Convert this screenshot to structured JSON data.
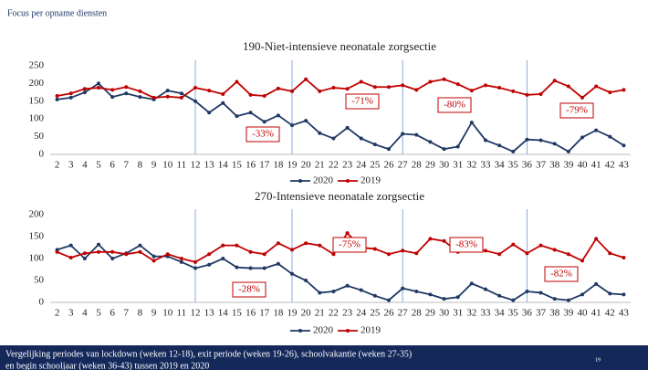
{
  "header": {
    "title": "Focus per opname diensten"
  },
  "chart_data": [
    {
      "type": "line",
      "title": "190-Niet-intensieve neonatale zorgsectie",
      "categories": [
        "2",
        "3",
        "4",
        "5",
        "6",
        "7",
        "8",
        "9",
        "10",
        "11",
        "12",
        "13",
        "14",
        "15",
        "16",
        "17",
        "18",
        "19",
        "20",
        "21",
        "22",
        "23",
        "24",
        "25",
        "26",
        "27",
        "28",
        "29",
        "30",
        "31",
        "32",
        "33",
        "34",
        "35",
        "36",
        "37",
        "38",
        "39",
        "40",
        "41",
        "42",
        "43"
      ],
      "series": [
        {
          "name": "2020",
          "color": "#1f3864",
          "values": [
            155,
            160,
            175,
            200,
            162,
            172,
            162,
            155,
            180,
            172,
            150,
            118,
            145,
            108,
            118,
            92,
            110,
            82,
            95,
            60,
            45,
            75,
            45,
            28,
            15,
            58,
            55,
            35,
            15,
            22,
            90,
            40,
            25,
            8,
            42,
            40,
            30,
            8,
            48,
            68,
            50,
            25
          ]
        },
        {
          "name": "2019",
          "color": "#c00000",
          "values": [
            165,
            172,
            185,
            188,
            182,
            190,
            178,
            160,
            163,
            160,
            188,
            180,
            170,
            205,
            168,
            165,
            186,
            178,
            212,
            178,
            188,
            185,
            205,
            190,
            190,
            195,
            182,
            205,
            212,
            198,
            180,
            195,
            188,
            178,
            168,
            170,
            208,
            192,
            160,
            192,
            175,
            182
          ]
        }
      ],
      "ylim": [
        0,
        250
      ],
      "yticks": [
        0,
        50,
        100,
        150,
        200,
        250
      ],
      "grid": false,
      "annotations": [
        "-33%",
        "-71%",
        "-80%",
        "-79%"
      ]
    },
    {
      "type": "line",
      "title": "270-Intensieve neonatale zorgsectie",
      "categories": [
        "2",
        "3",
        "4",
        "5",
        "6",
        "7",
        "8",
        "9",
        "10",
        "11",
        "12",
        "13",
        "14",
        "15",
        "16",
        "17",
        "18",
        "19",
        "20",
        "21",
        "22",
        "23",
        "24",
        "25",
        "26",
        "27",
        "28",
        "29",
        "30",
        "31",
        "32",
        "33",
        "34",
        "35",
        "36",
        "37",
        "38",
        "39",
        "40",
        "41",
        "42",
        "43"
      ],
      "series": [
        {
          "name": "2020",
          "color": "#1f3864",
          "values": [
            120,
            130,
            100,
            132,
            100,
            112,
            130,
            105,
            105,
            92,
            78,
            86,
            100,
            80,
            78,
            78,
            88,
            65,
            50,
            22,
            25,
            38,
            28,
            15,
            5,
            32,
            25,
            18,
            8,
            12,
            43,
            30,
            15,
            5,
            25,
            22,
            8,
            5,
            18,
            42,
            20,
            18
          ]
        },
        {
          "name": "2019",
          "color": "#c00000",
          "values": [
            115,
            102,
            112,
            115,
            115,
            110,
            115,
            95,
            110,
            100,
            92,
            110,
            130,
            130,
            115,
            110,
            135,
            120,
            135,
            130,
            110,
            158,
            125,
            122,
            110,
            118,
            112,
            145,
            140,
            115,
            122,
            118,
            110,
            132,
            112,
            130,
            120,
            110,
            95,
            145,
            112,
            102
          ]
        }
      ],
      "ylim": [
        0,
        200
      ],
      "yticks": [
        0,
        50,
        100,
        150,
        200
      ],
      "grid": false,
      "annotations": [
        "-28%",
        "-75%",
        "-83%",
        "-82%"
      ]
    }
  ],
  "footer": {
    "lines": [
      "Vergelijking periodes van lockdown (weken 12-18),  exit periode (weken 19-26), schoolvakantie (weken 27-35)",
      "en begin schooljaar (weken 36-43) tussen 2019 en 2020"
    ],
    "page": "19"
  }
}
